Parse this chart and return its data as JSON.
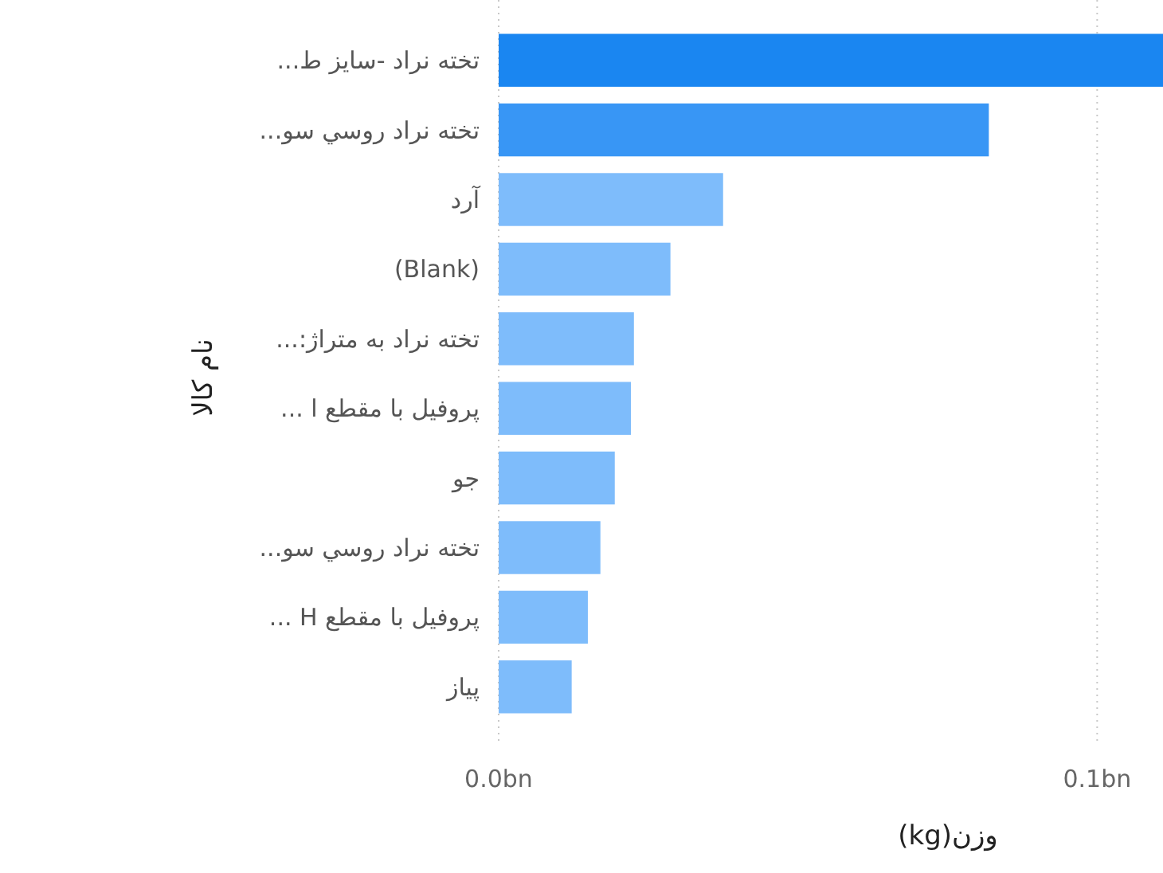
{
  "chart_data": {
    "type": "bar",
    "orientation": "horizontal",
    "xlabel": "وزن(kg)",
    "ylabel": "نام کالا",
    "categories": [
      "تخته نراد -سایز ط...",
      "تخته نراد روسي سو...",
      "آرد",
      "(Blank)",
      "تخته نراد به متراژ:...",
      "پروفیل با مقطع ا ...",
      "جو",
      "تخته نراد روسي سو...",
      "پروفیل با مقطع H ...",
      "پیاز"
    ],
    "values": [
      0.111,
      0.0819,
      0.0375,
      0.0287,
      0.0226,
      0.0221,
      0.0194,
      0.017,
      0.0149,
      0.0122
    ],
    "colors": [
      "#1a86f1",
      "#3896f5",
      "#7ebcfb",
      "#7ebcfb",
      "#7ebcfb",
      "#7ebcfb",
      "#7ebcfb",
      "#7ebcfb",
      "#7ebcfb",
      "#7ebcfb"
    ],
    "xlim": [
      0,
      0.111
    ],
    "xticks": [
      {
        "value": 0,
        "label": "0.0bn"
      },
      {
        "value": 0.1,
        "label": "0.1bn"
      }
    ],
    "grid": "x"
  }
}
